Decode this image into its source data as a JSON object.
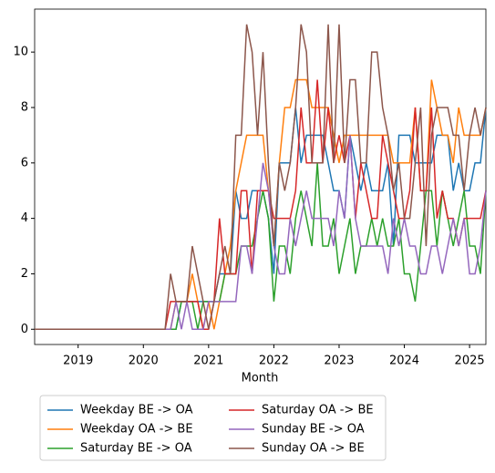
{
  "chart_data": {
    "type": "line",
    "xlabel": "Month",
    "x": [
      "2018-05",
      "2018-06",
      "2018-07",
      "2018-08",
      "2018-09",
      "2018-10",
      "2018-11",
      "2018-12",
      "2019-01",
      "2019-02",
      "2019-03",
      "2019-04",
      "2019-05",
      "2019-06",
      "2019-07",
      "2019-08",
      "2019-09",
      "2019-10",
      "2019-11",
      "2019-12",
      "2020-01",
      "2020-02",
      "2020-03",
      "2020-04",
      "2020-05",
      "2020-06",
      "2020-07",
      "2020-08",
      "2020-09",
      "2020-10",
      "2020-11",
      "2020-12",
      "2021-01",
      "2021-02",
      "2021-03",
      "2021-04",
      "2021-05",
      "2021-06",
      "2021-07",
      "2021-08",
      "2021-09",
      "2021-10",
      "2021-11",
      "2021-12",
      "2022-01",
      "2022-02",
      "2022-03",
      "2022-04",
      "2022-05",
      "2022-06",
      "2022-07",
      "2022-08",
      "2022-09",
      "2022-10",
      "2022-11",
      "2022-12",
      "2023-01",
      "2023-02",
      "2023-03",
      "2023-04",
      "2023-05",
      "2023-06",
      "2023-07",
      "2023-08",
      "2023-09",
      "2023-10",
      "2023-11",
      "2023-12",
      "2024-01",
      "2024-02",
      "2024-03",
      "2024-04",
      "2024-05",
      "2024-06",
      "2024-07",
      "2024-08",
      "2024-09",
      "2024-10",
      "2024-11",
      "2024-12",
      "2025-01",
      "2025-02",
      "2025-03",
      "2025-04"
    ],
    "series": [
      {
        "name": "Weekday BE -> OA",
        "color": "#1f77b4",
        "values": [
          0,
          0,
          0,
          0,
          0,
          0,
          0,
          0,
          0,
          0,
          0,
          0,
          0,
          0,
          0,
          0,
          0,
          0,
          0,
          0,
          0,
          0,
          0,
          0,
          0,
          0,
          0,
          1,
          1,
          1,
          1,
          1,
          1,
          1,
          2,
          2,
          2,
          5,
          4,
          4,
          5,
          5,
          5,
          4,
          2,
          6,
          6,
          6,
          8,
          6,
          7,
          7,
          7,
          7,
          6,
          5,
          5,
          4,
          7,
          6,
          5,
          6,
          5,
          5,
          5,
          6,
          3,
          7,
          7,
          7,
          6,
          6,
          6,
          6,
          7,
          7,
          7,
          5,
          6,
          5,
          5,
          6,
          6,
          8
        ]
      },
      {
        "name": "Weekday OA -> BE",
        "color": "#ff7f0e",
        "values": [
          0,
          0,
          0,
          0,
          0,
          0,
          0,
          0,
          0,
          0,
          0,
          0,
          0,
          0,
          0,
          0,
          0,
          0,
          0,
          0,
          0,
          0,
          0,
          0,
          0,
          0,
          1,
          1,
          1,
          2,
          1,
          0,
          1,
          0,
          1,
          2,
          3,
          5,
          6,
          7,
          7,
          7,
          7,
          5,
          3,
          6,
          8,
          8,
          9,
          9,
          9,
          8,
          8,
          8,
          8,
          7,
          6,
          7,
          7,
          7,
          7,
          7,
          7,
          7,
          7,
          7,
          6,
          6,
          6,
          6,
          8,
          5,
          5,
          9,
          8,
          7,
          7,
          6,
          8,
          7,
          7,
          7,
          7,
          8
        ]
      },
      {
        "name": "Saturday BE -> OA",
        "color": "#2ca02c",
        "values": [
          0,
          0,
          0,
          0,
          0,
          0,
          0,
          0,
          0,
          0,
          0,
          0,
          0,
          0,
          0,
          0,
          0,
          0,
          0,
          0,
          0,
          0,
          0,
          0,
          0,
          0,
          0,
          1,
          1,
          1,
          0,
          1,
          1,
          1,
          1,
          2,
          2,
          2,
          3,
          3,
          3,
          4,
          5,
          4,
          1,
          3,
          3,
          2,
          4,
          5,
          4,
          3,
          6,
          3,
          3,
          4,
          2,
          3,
          4,
          2,
          3,
          3,
          4,
          3,
          4,
          3,
          3,
          4,
          2,
          2,
          1,
          3,
          5,
          5,
          3,
          5,
          4,
          3,
          4,
          5,
          3,
          3,
          2,
          5
        ]
      },
      {
        "name": "Saturday OA -> BE",
        "color": "#d62728",
        "values": [
          0,
          0,
          0,
          0,
          0,
          0,
          0,
          0,
          0,
          0,
          0,
          0,
          0,
          0,
          0,
          0,
          0,
          0,
          0,
          0,
          0,
          0,
          0,
          0,
          0,
          1,
          1,
          1,
          1,
          1,
          1,
          0,
          0,
          1,
          4,
          2,
          2,
          2,
          5,
          5,
          2,
          5,
          5,
          5,
          4,
          4,
          4,
          4,
          5,
          8,
          6,
          6,
          9,
          6,
          8,
          6,
          7,
          6,
          7,
          4,
          6,
          5,
          4,
          4,
          7,
          6,
          5,
          4,
          4,
          5,
          8,
          5,
          5,
          8,
          4,
          5,
          4,
          4,
          3,
          4,
          4,
          4,
          4,
          5
        ]
      },
      {
        "name": "Sunday BE -> OA",
        "color": "#9467bd",
        "values": [
          0,
          0,
          0,
          0,
          0,
          0,
          0,
          0,
          0,
          0,
          0,
          0,
          0,
          0,
          0,
          0,
          0,
          0,
          0,
          0,
          0,
          0,
          0,
          0,
          0,
          0,
          1,
          0,
          1,
          0,
          0,
          0,
          1,
          1,
          1,
          1,
          1,
          1,
          3,
          3,
          2,
          4,
          6,
          5,
          3,
          2,
          2,
          4,
          3,
          4,
          5,
          4,
          4,
          4,
          4,
          3,
          5,
          4,
          7,
          4,
          3,
          3,
          3,
          3,
          3,
          2,
          4,
          3,
          4,
          3,
          3,
          2,
          2,
          3,
          3,
          2,
          3,
          4,
          3,
          4,
          2,
          2,
          3,
          5
        ]
      },
      {
        "name": "Sunday OA -> BE",
        "color": "#8c564b",
        "values": [
          0,
          0,
          0,
          0,
          0,
          0,
          0,
          0,
          0,
          0,
          0,
          0,
          0,
          0,
          0,
          0,
          0,
          0,
          0,
          0,
          0,
          0,
          0,
          0,
          0,
          2,
          1,
          1,
          1,
          3,
          2,
          1,
          0,
          1,
          2,
          3,
          2,
          7,
          7,
          11,
          10,
          7,
          10,
          6,
          3,
          6,
          5,
          6,
          8,
          11,
          10,
          6,
          6,
          6,
          11,
          6,
          11,
          6,
          9,
          9,
          6,
          6,
          10,
          10,
          8,
          7,
          5,
          6,
          4,
          4,
          6,
          8,
          3,
          7,
          8,
          8,
          8,
          7,
          7,
          5,
          7,
          8,
          7,
          8
        ]
      }
    ],
    "xlim": [
      "2018-05",
      "2025-04"
    ],
    "xticks": [
      {
        "value": "2019-01",
        "label": "2019"
      },
      {
        "value": "2020-01",
        "label": "2020"
      },
      {
        "value": "2021-01",
        "label": "2021"
      },
      {
        "value": "2022-01",
        "label": "2022"
      },
      {
        "value": "2023-01",
        "label": "2023"
      },
      {
        "value": "2024-01",
        "label": "2024"
      },
      {
        "value": "2025-01",
        "label": "2025"
      }
    ],
    "ylim": [
      -0.55,
      11.55
    ],
    "yticks": [
      0,
      2,
      4,
      6,
      8,
      10
    ],
    "grid": false,
    "legend": "bottom"
  }
}
